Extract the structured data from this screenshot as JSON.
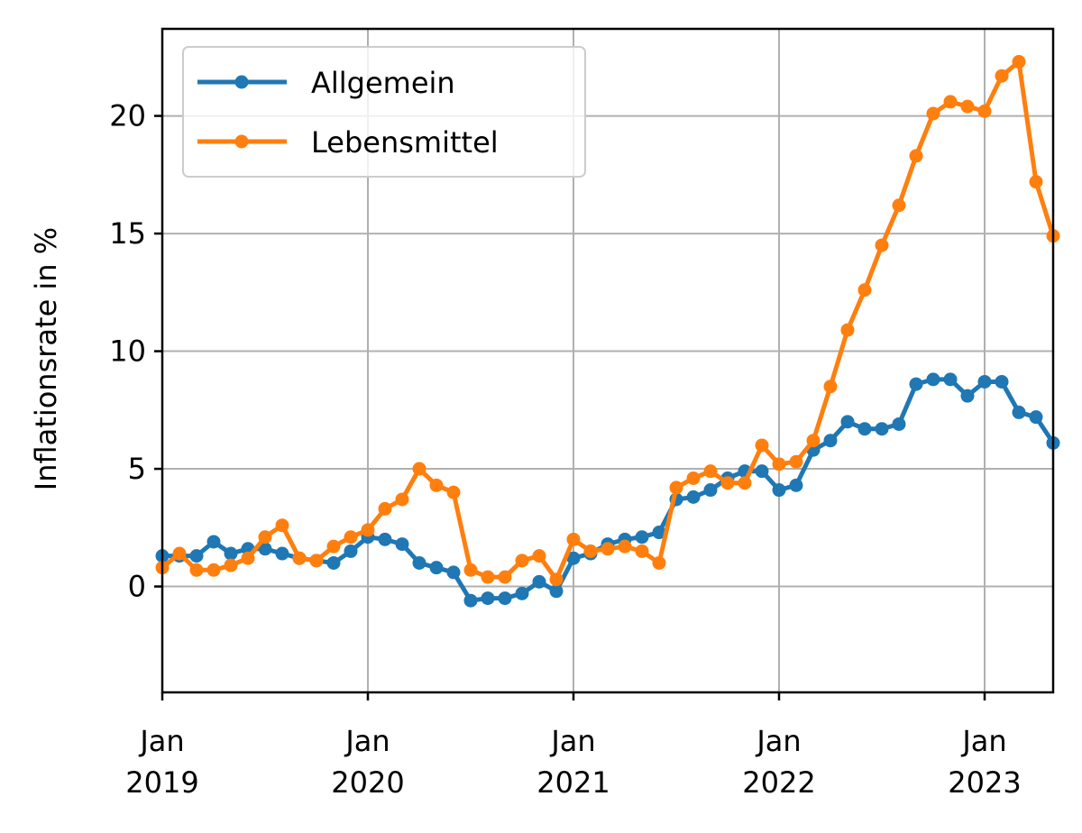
{
  "chart_data": {
    "type": "line",
    "title": "",
    "xlabel": "",
    "ylabel": "Inflationsrate in %",
    "x_start": "2019-01",
    "x_end": "2023-05",
    "x": [
      "2019-01",
      "2019-02",
      "2019-03",
      "2019-04",
      "2019-05",
      "2019-06",
      "2019-07",
      "2019-08",
      "2019-09",
      "2019-10",
      "2019-11",
      "2019-12",
      "2020-01",
      "2020-02",
      "2020-03",
      "2020-04",
      "2020-05",
      "2020-06",
      "2020-07",
      "2020-08",
      "2020-09",
      "2020-10",
      "2020-11",
      "2020-12",
      "2021-01",
      "2021-02",
      "2021-03",
      "2021-04",
      "2021-05",
      "2021-06",
      "2021-07",
      "2021-08",
      "2021-09",
      "2021-10",
      "2021-11",
      "2021-12",
      "2022-01",
      "2022-02",
      "2022-03",
      "2022-04",
      "2022-05",
      "2022-06",
      "2022-07",
      "2022-08",
      "2022-09",
      "2022-10",
      "2022-11",
      "2022-12",
      "2023-01",
      "2023-02",
      "2023-03",
      "2023-04",
      "2023-05"
    ],
    "xlim": [
      "2019-01",
      "2023-05"
    ],
    "ylim": [
      -4.5,
      23.7
    ],
    "yticks": [
      0,
      5,
      10,
      15,
      20
    ],
    "xticks": [
      {
        "date": "2019-01",
        "line1": "Jan",
        "line2": "2019"
      },
      {
        "date": "2020-01",
        "line1": "Jan",
        "line2": "2020"
      },
      {
        "date": "2021-01",
        "line1": "Jan",
        "line2": "2021"
      },
      {
        "date": "2022-01",
        "line1": "Jan",
        "line2": "2022"
      },
      {
        "date": "2023-01",
        "line1": "Jan",
        "line2": "2023"
      }
    ],
    "grid": true,
    "legend_position": "top-left",
    "series": [
      {
        "name": "Allgemein",
        "color": "#1f77b4",
        "values": [
          1.3,
          1.3,
          1.3,
          1.9,
          1.4,
          1.6,
          1.6,
          1.4,
          1.2,
          1.1,
          1.0,
          1.5,
          2.1,
          2.0,
          1.8,
          1.0,
          0.8,
          0.6,
          -0.6,
          -0.5,
          -0.5,
          -0.3,
          0.2,
          -0.2,
          1.2,
          1.4,
          1.8,
          2.0,
          2.1,
          2.3,
          3.7,
          3.8,
          4.1,
          4.6,
          4.9,
          4.9,
          4.1,
          4.3,
          5.8,
          6.2,
          7.0,
          6.7,
          6.7,
          6.9,
          8.6,
          8.8,
          8.8,
          8.1,
          8.7,
          8.7,
          7.4,
          7.2,
          6.1
        ]
      },
      {
        "name": "Lebensmittel",
        "color": "#ff7f0e",
        "values": [
          0.8,
          1.4,
          0.7,
          0.7,
          0.9,
          1.2,
          2.1,
          2.6,
          1.2,
          1.1,
          1.7,
          2.1,
          2.4,
          3.3,
          3.7,
          5.0,
          4.3,
          4.0,
          0.7,
          0.4,
          0.4,
          1.1,
          1.3,
          0.3,
          2.0,
          1.5,
          1.6,
          1.7,
          1.5,
          1.0,
          4.2,
          4.6,
          4.9,
          4.4,
          4.4,
          6.0,
          5.2,
          5.3,
          6.2,
          8.5,
          10.9,
          12.6,
          14.5,
          16.2,
          18.3,
          20.1,
          20.6,
          20.4,
          20.2,
          21.7,
          22.3,
          17.2,
          14.9
        ]
      }
    ]
  }
}
